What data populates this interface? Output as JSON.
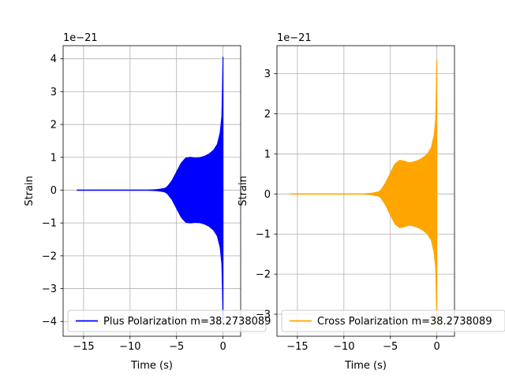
{
  "chart_data": [
    {
      "type": "line",
      "title": "",
      "xlabel": "Time (s)",
      "ylabel": "Strain",
      "offset_label": "1e−21",
      "xlim": [
        -17.2,
        1.9
      ],
      "ylim": [
        -4.45,
        4.4
      ],
      "xticks": [
        -15,
        -10,
        -5,
        0
      ],
      "xtick_labels": [
        "−15",
        "−10",
        "−5",
        "0"
      ],
      "yticks": [
        -4,
        -3,
        -2,
        -1,
        0,
        1,
        2,
        3,
        4
      ],
      "ytick_labels": [
        "−4",
        "−3",
        "−2",
        "−1",
        "0",
        "1",
        "2",
        "3",
        "4"
      ],
      "grid": true,
      "legend_position": "lower-left",
      "series": [
        {
          "name": "Plus Polarization m=38.2738089",
          "color": "#0000ff",
          "envelope": {
            "t": [
              -15.7,
              -8.0,
              -7.0,
              -6.3,
              -6.0,
              -5.5,
              -5.0,
              -4.5,
              -4.0,
              -3.5,
              -3.0,
              -2.5,
              -2.0,
              -1.5,
              -1.0,
              -0.6,
              -0.3,
              -0.1,
              0.0
            ],
            "amplitude": [
              0.0,
              0.0,
              0.02,
              0.05,
              0.1,
              0.28,
              0.55,
              0.82,
              0.98,
              1.0,
              0.98,
              0.99,
              1.03,
              1.1,
              1.22,
              1.4,
              1.75,
              2.3,
              4.05
            ],
            "trough_amplitude": [
              0.0,
              0.0,
              0.02,
              0.05,
              0.1,
              0.28,
              0.55,
              0.82,
              0.98,
              1.0,
              0.98,
              0.99,
              1.03,
              1.1,
              1.22,
              1.4,
              1.75,
              2.3,
              3.95
            ]
          }
        }
      ]
    },
    {
      "type": "line",
      "title": "",
      "xlabel": "Time (s)",
      "ylabel": "Strain",
      "offset_label": "1e−21",
      "xlim": [
        -17.2,
        1.9
      ],
      "ylim": [
        -3.55,
        3.7
      ],
      "xticks": [
        -15,
        -10,
        -5,
        0
      ],
      "xtick_labels": [
        "−15",
        "−10",
        "−5",
        "0"
      ],
      "yticks": [
        -3,
        -2,
        -1,
        0,
        1,
        2,
        3
      ],
      "ytick_labels": [
        "−3",
        "−2",
        "−1",
        "0",
        "1",
        "2",
        "3"
      ],
      "grid": true,
      "legend_position": "lower-left",
      "series": [
        {
          "name": "Cross Polarization m=38.2738089",
          "color": "#ffa500",
          "envelope": {
            "t": [
              -15.7,
              -8.0,
              -7.0,
              -6.3,
              -6.0,
              -5.5,
              -5.0,
              -4.5,
              -4.0,
              -3.5,
              -3.0,
              -2.5,
              -2.0,
              -1.5,
              -1.0,
              -0.6,
              -0.3,
              -0.1,
              0.0
            ],
            "amplitude": [
              0.0,
              0.0,
              0.02,
              0.05,
              0.1,
              0.28,
              0.52,
              0.75,
              0.84,
              0.82,
              0.78,
              0.8,
              0.84,
              0.9,
              1.0,
              1.15,
              1.45,
              1.9,
              3.35
            ],
            "trough_amplitude": [
              0.0,
              0.0,
              0.02,
              0.05,
              0.1,
              0.28,
              0.52,
              0.75,
              0.84,
              0.82,
              0.78,
              0.8,
              0.84,
              0.9,
              1.0,
              1.15,
              1.45,
              1.9,
              3.3
            ]
          }
        }
      ]
    }
  ]
}
